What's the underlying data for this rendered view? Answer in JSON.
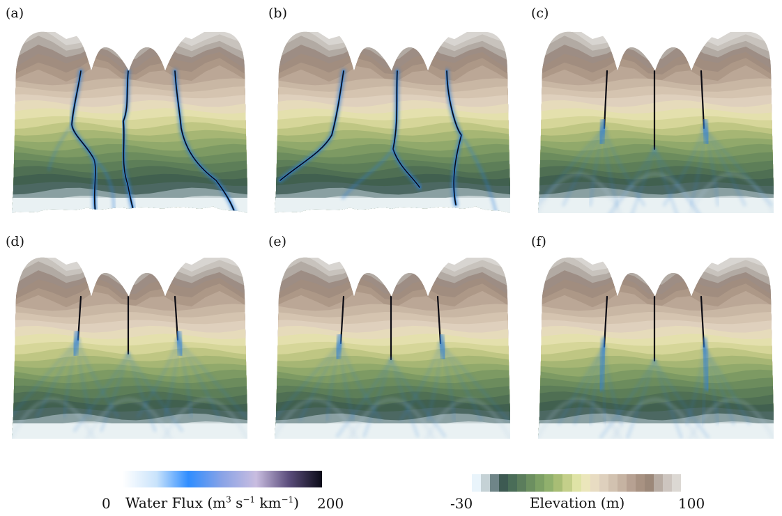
{
  "panels": [
    {
      "label": "(a)",
      "variant": "braided-a"
    },
    {
      "label": "(b)",
      "variant": "braided-b"
    },
    {
      "label": "(c)",
      "variant": "fan-c"
    },
    {
      "label": "(d)",
      "variant": "fan-d"
    },
    {
      "label": "(e)",
      "variant": "fan-e"
    },
    {
      "label": "(f)",
      "variant": "fan-f"
    }
  ],
  "flux_colorbar": {
    "min": "0",
    "max": "200",
    "title_html": "Water Flux (m<sup>3</sup> s<sup>−1</sup> km<sup>−1</sup>)",
    "colors": [
      "#ffffff",
      "#c9e3fb",
      "#2f8dff",
      "#8aa3e6",
      "#c9bde0",
      "#5d4f7e",
      "#0b0b18"
    ]
  },
  "elevation_colorbar": {
    "min": "-30",
    "max": "100",
    "title": "Elevation (m)",
    "colors": [
      "#e9f4fb",
      "#c5d2d6",
      "#6f8588",
      "#3d5a52",
      "#4a6d58",
      "#5b7d5c",
      "#6c8f60",
      "#7da065",
      "#90b06d",
      "#a8bd75",
      "#c4cf8a",
      "#dfe3a6",
      "#ebe6bb",
      "#e8dcc2",
      "#ded0bd",
      "#d2c2b0",
      "#c6b3a2",
      "#b7a192",
      "#a89282",
      "#9c8879",
      "#b8aca3",
      "#cdc5bf",
      "#dcd8d3"
    ]
  },
  "terrain_bands": [
    "#e9f1f3",
    "#c8d4d6",
    "#8aa0a2",
    "#4c6862",
    "#41604f",
    "#4f6f53",
    "#5d7e58",
    "#6c8c5d",
    "#7d9a63",
    "#91a96b",
    "#a6b674",
    "#bfc683",
    "#d6d699",
    "#e4e0ad",
    "#e6dbbb",
    "#dfd0bd",
    "#d5c4b0",
    "#c9b7a4",
    "#bba796",
    "#ad9887",
    "#a18d7f",
    "#9d8d84",
    "#b2aaa3",
    "#c8c3bd",
    "#d8d5d1"
  ]
}
